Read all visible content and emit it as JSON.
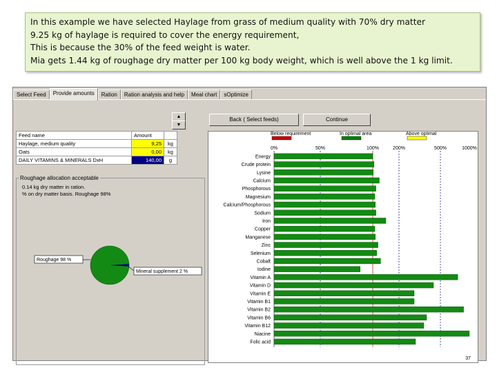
{
  "caption": {
    "lines": [
      "In this example we have selected Haylage from grass of medium quality with 70% dry matter",
      "9.25 kg of haylage is required to cover the energy requirement,",
      "This is because the 30% of the feed weight is water.",
      "Mia gets 1.44 kg of roughage dry matter per 100 kg body weight, which is well above the 1 kg limit."
    ]
  },
  "tabs": [
    "Select Feed",
    "Provide amounts",
    "Ration",
    "Ration analysis and help",
    "Meal chart",
    "sOptimize"
  ],
  "buttons": {
    "back": "Back ( Select feeds)",
    "continue": "Continue"
  },
  "feed_table": {
    "headers": [
      "Feed name",
      "Amount",
      ""
    ],
    "rows": [
      {
        "name": "Haylage, medium quality",
        "amount": "9,25",
        "unit": "kg"
      },
      {
        "name": "Oats",
        "amount": "0,00",
        "unit": "kg"
      },
      {
        "name": "DAILY VITAMINS & MINERALS DxH",
        "amount": "140,00",
        "unit": "g"
      }
    ]
  },
  "roughage": {
    "title": "Roughage allocation acceptable",
    "lines": [
      "0.14 kg dry matter in ration.",
      "% on dry matter basis. Roughage 98%"
    ],
    "pie_roughage_label": "Roughage 98 %",
    "pie_mineral_label": "Mineral supplement 2 %",
    "roughage_fraction": 0.98
  },
  "chart_data": {
    "type": "bar",
    "legend": [
      "Below requirement",
      "In optimal area",
      "Above optimal"
    ],
    "legend_colors": [
      "#cc0000",
      "#008000",
      "#ffff00"
    ],
    "bar_color": "#138a13",
    "ticks": [
      "0%",
      "50%",
      "100%",
      "200%",
      "500%",
      "1000%"
    ],
    "tick_values": [
      0,
      50,
      100,
      200,
      500,
      1000
    ],
    "categories": [
      "Energy",
      "Crude protein",
      "Lysine",
      "Calcium",
      "Phosphorous",
      "Magnesium",
      "Calcium/Phosphorous",
      "Sodium",
      "Iron",
      "Copper",
      "Manganese",
      "Zinc",
      "Selenium",
      "Cobalt",
      "Iodine",
      "Vitamin A",
      "Vitamin D",
      "Vitamin E",
      "Vitamin B1",
      "Vitamin B2",
      "Vitamin B6",
      "Vitamin B12",
      "Niacine",
      "Folic acid"
    ],
    "values": [
      100,
      105,
      102,
      125,
      112,
      108,
      110,
      112,
      150,
      108,
      110,
      120,
      115,
      130,
      88,
      800,
      450,
      310,
      310,
      900,
      400,
      380,
      1000,
      320
    ],
    "page_number": "37"
  }
}
